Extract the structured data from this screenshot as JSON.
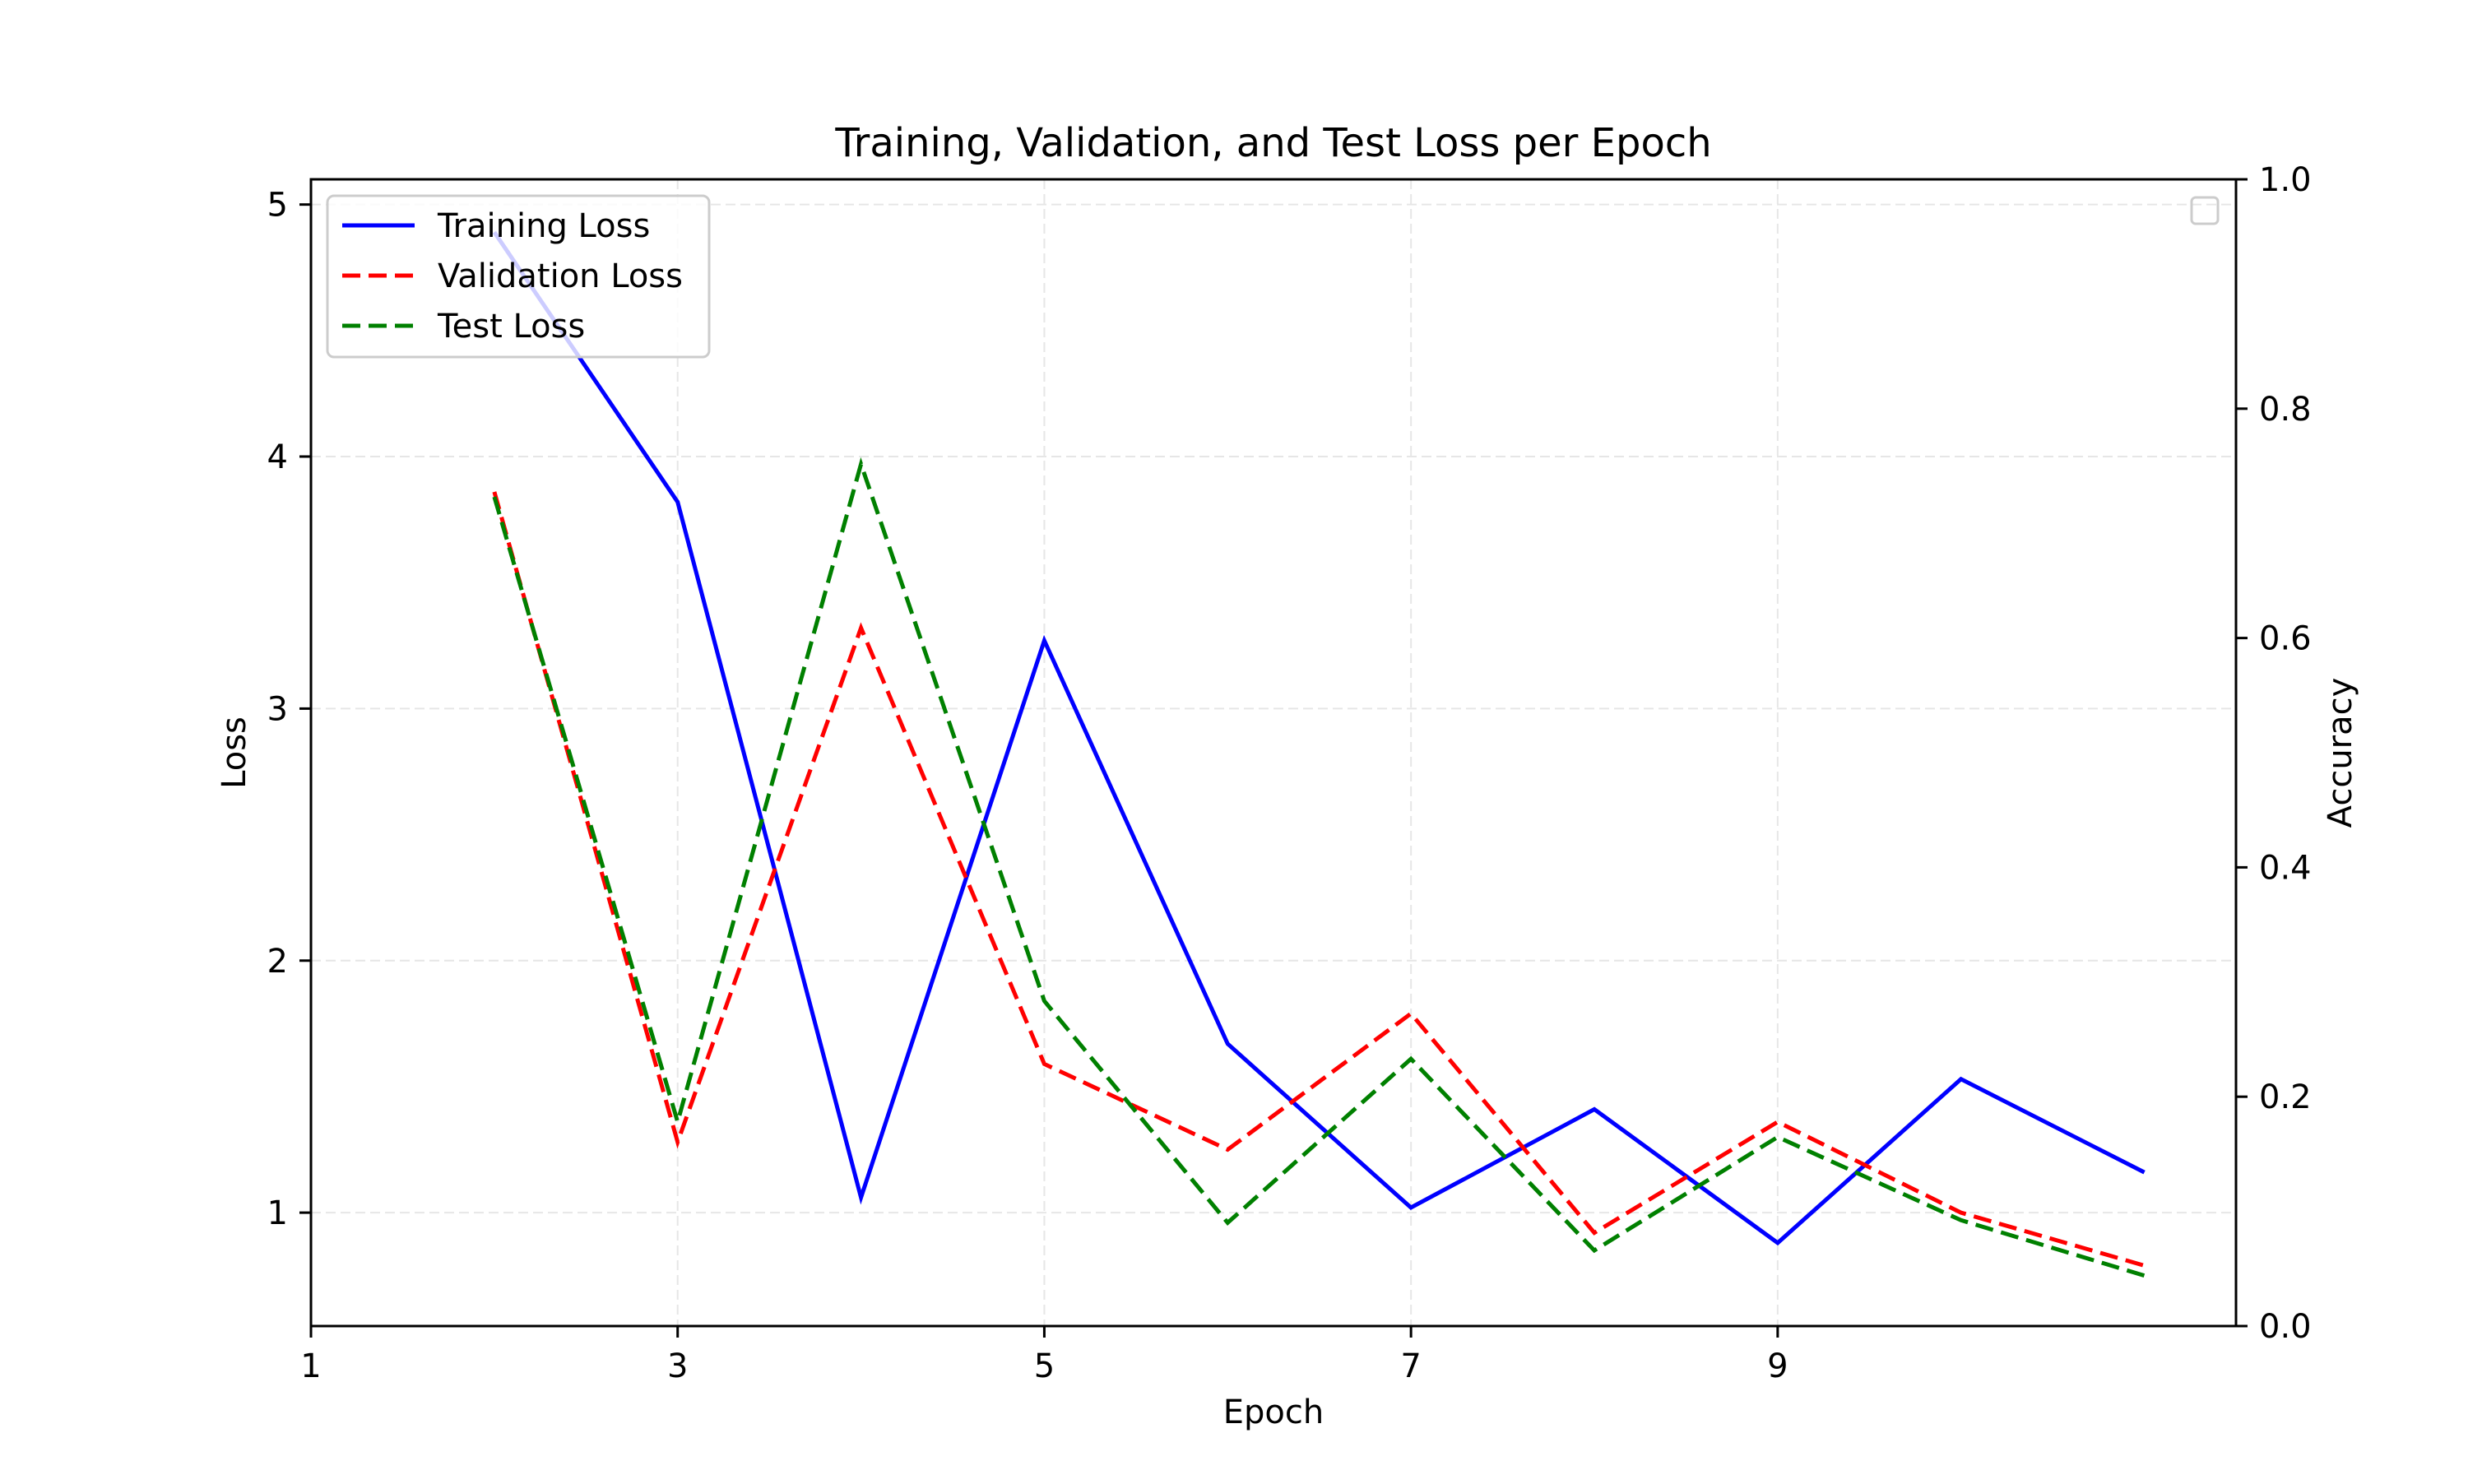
{
  "chart_data": {
    "type": "line",
    "title": "Training, Validation, and Test Loss per Epoch",
    "xlabel": "Epoch",
    "ylabel": "Loss",
    "y2label": "Accuracy",
    "xlim": [
      1,
      11.5
    ],
    "ylim": [
      0.55,
      5.1
    ],
    "y2lim": [
      0.0,
      1.0
    ],
    "xticks": [
      1,
      3,
      5,
      7,
      9
    ],
    "yticks": [
      1,
      2,
      3,
      4,
      5
    ],
    "y2ticks": [
      "0.0",
      "0.2",
      "0.4",
      "0.6",
      "0.8",
      "1.0"
    ],
    "grid": true,
    "legend": "upper left",
    "series": [
      {
        "name": "Training Loss",
        "color": "#0000ff",
        "style": "solid",
        "x": [
          2,
          3,
          4,
          5,
          6,
          7,
          8,
          9,
          10,
          11
        ],
        "y": [
          4.89,
          3.82,
          1.06,
          3.27,
          1.67,
          1.02,
          1.41,
          0.88,
          1.53,
          1.16
        ]
      },
      {
        "name": "Validation Loss",
        "color": "#ff0000",
        "style": "dashed",
        "x": [
          2,
          3,
          4,
          5,
          6,
          7,
          8,
          9,
          10,
          11
        ],
        "y": [
          3.86,
          1.28,
          3.32,
          1.59,
          1.25,
          1.79,
          0.92,
          1.36,
          1.0,
          0.79
        ]
      },
      {
        "name": "Test Loss",
        "color": "#008000",
        "style": "dashed",
        "x": [
          2,
          3,
          4,
          5,
          6,
          7,
          8,
          9,
          10,
          11
        ],
        "y": [
          3.84,
          1.36,
          3.97,
          1.84,
          0.96,
          1.61,
          0.85,
          1.3,
          0.97,
          0.75
        ]
      }
    ]
  }
}
